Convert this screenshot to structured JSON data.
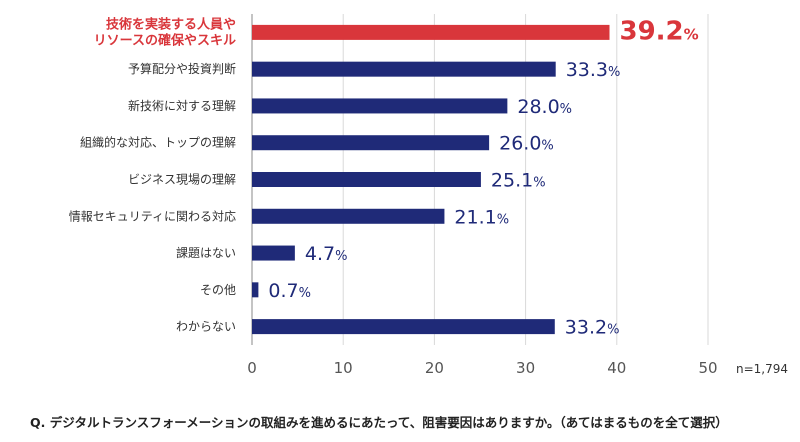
{
  "chart_data": {
    "type": "bar",
    "orientation": "horizontal",
    "categories": [
      "技術を実装する人員やリソースの確保やスキル",
      "予算配分や投資判断",
      "新技術に対する理解",
      "組織的な対応、トップの理解",
      "ビジネス現場の理解",
      "情報セキュリティに関わる対応",
      "課題はない",
      "その他",
      "わからない"
    ],
    "category_lines": [
      [
        "技術を実装する人員や",
        "リソースの確保やスキル"
      ],
      [
        "予算配分や投資判断"
      ],
      [
        "新技術に対する理解"
      ],
      [
        "組織的な対応、トップの理解"
      ],
      [
        "ビジネス現場の理解"
      ],
      [
        "情報セキュリティに関わる対応"
      ],
      [
        "課題はない"
      ],
      [
        "その他"
      ],
      [
        "わからない"
      ]
    ],
    "values": [
      39.2,
      33.3,
      28.0,
      26.0,
      25.1,
      21.1,
      4.7,
      0.7,
      33.2
    ],
    "value_labels": [
      "39.2",
      "33.3",
      "28.0",
      "26.0",
      "25.1",
      "21.1",
      "4.7",
      "0.7",
      "33.2"
    ],
    "value_suffix": "%",
    "highlight_index": 0,
    "xlim": [
      0,
      50
    ],
    "xticks": [
      0,
      10,
      20,
      30,
      40,
      50
    ],
    "grid": "vertical",
    "legend": "none",
    "colors": {
      "bar": "#1f2a78",
      "highlight": "#d9363b",
      "grid": "#d9d9d9",
      "axis": "#888888"
    },
    "sample_size": "n=1,794"
  },
  "question": "Q. デジタルトランスフォーメーションの取組みを進めるにあたって、阻害要因はありますか。（あてはまるものを全て選択）"
}
